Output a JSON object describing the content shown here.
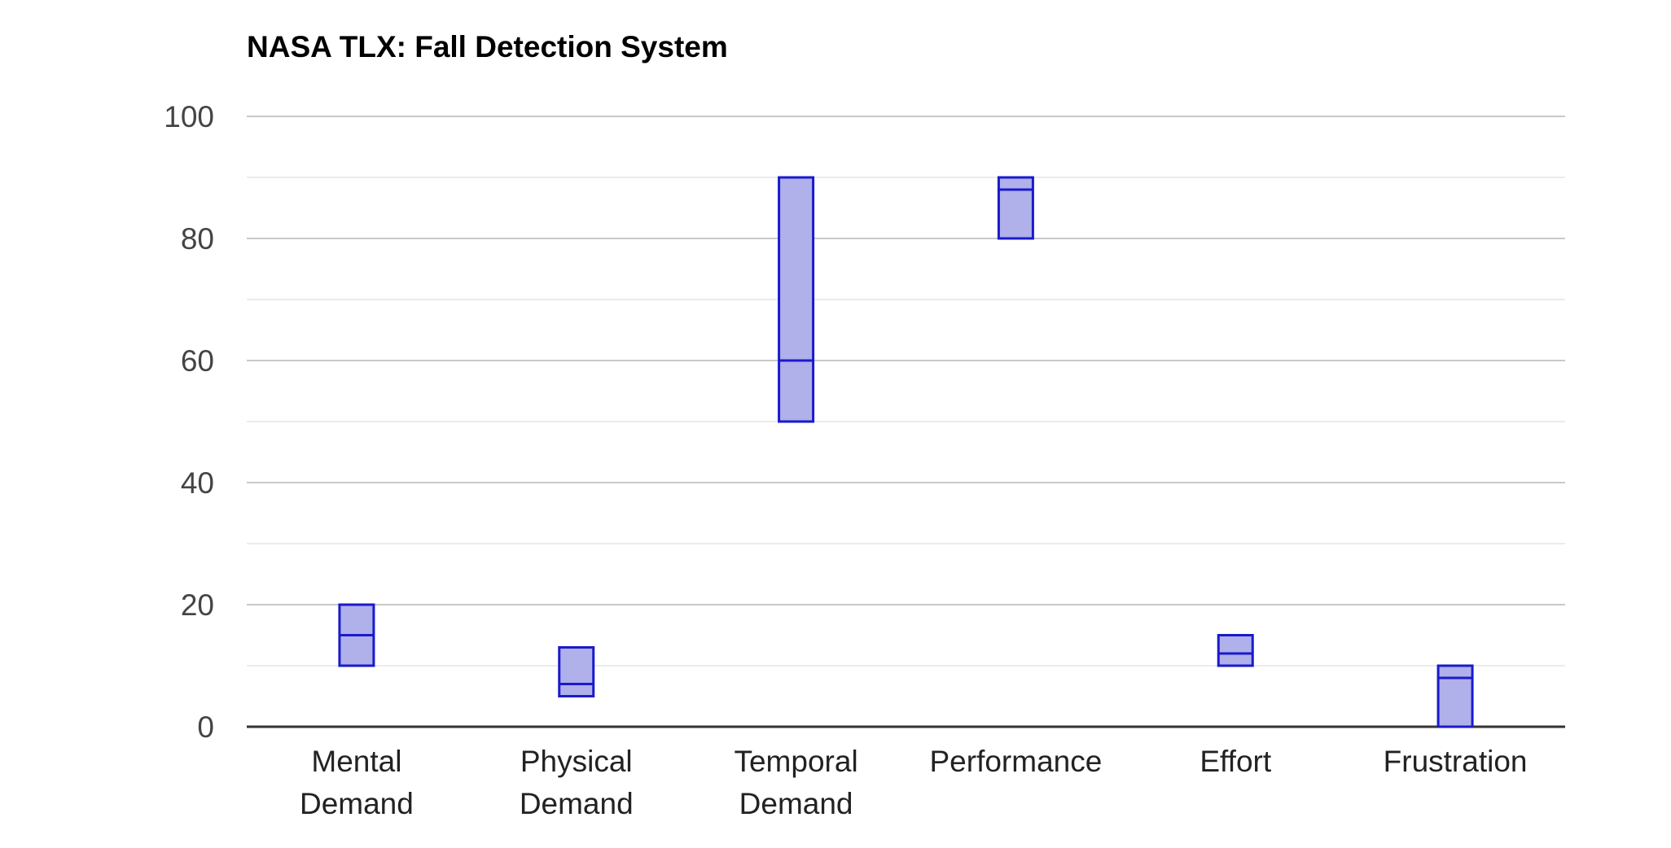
{
  "chart_data": {
    "type": "candlestick",
    "title": "NASA TLX: Fall Detection System",
    "xlabel": "",
    "ylabel": "",
    "ylim": [
      0,
      100
    ],
    "yticks": [
      "0",
      "20",
      "40",
      "60",
      "80",
      "100"
    ],
    "categories": [
      {
        "label_lines": [
          "Mental",
          "Demand"
        ],
        "low": 10,
        "median": 15,
        "high": 20
      },
      {
        "label_lines": [
          "Physical",
          "Demand"
        ],
        "low": 5,
        "median": 7,
        "high": 13
      },
      {
        "label_lines": [
          "Temporal",
          "Demand"
        ],
        "low": 50,
        "median": 60,
        "high": 90
      },
      {
        "label_lines": [
          "Performance"
        ],
        "low": 80,
        "median": 88,
        "high": 90
      },
      {
        "label_lines": [
          "Effort"
        ],
        "low": 10,
        "median": 12,
        "high": 15
      },
      {
        "label_lines": [
          "Frustration"
        ],
        "low": 0,
        "median": 8,
        "high": 10
      }
    ],
    "grid": true,
    "minor_grid": true,
    "legend": "none",
    "colors": {
      "box_fill": "#b0b0ea",
      "box_stroke": "#1a1acc",
      "major_grid": "#c8c8c8",
      "minor_grid": "#ebebeb",
      "baseline": "#333333"
    }
  }
}
